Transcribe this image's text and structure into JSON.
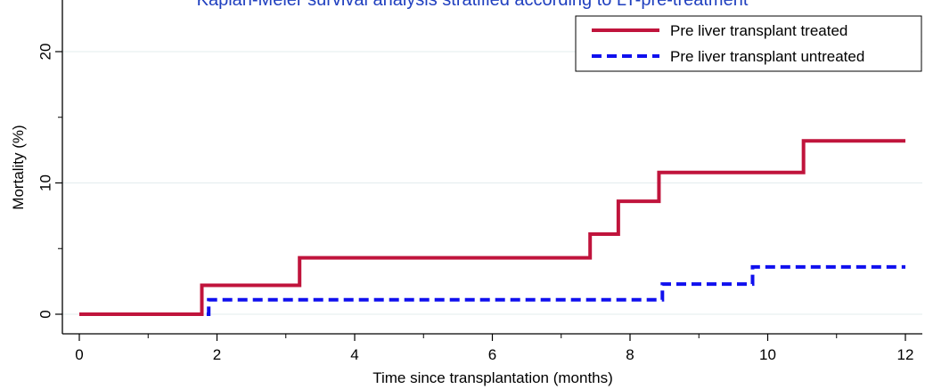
{
  "chart_data": {
    "type": "line",
    "title": "Kaplan-Meier survival analysis stratified according to LT-pre-treatment",
    "xlabel": "Time since transplantation  (months)",
    "ylabel": "Mortality (%)",
    "xlim": [
      0,
      12
    ],
    "ylim": [
      0,
      20
    ],
    "x_ticks": [
      0,
      2,
      4,
      6,
      8,
      10,
      12
    ],
    "x_minor_ticks": [
      1,
      3,
      5,
      7,
      9,
      11
    ],
    "y_ticks": [
      0,
      10,
      20
    ],
    "grid": true,
    "legend_position": "top-right",
    "step": true,
    "series": [
      {
        "name": "Pre liver transplant treated",
        "color": "#c0143c",
        "style": "solid",
        "x": [
          0,
          1.78,
          3.2,
          7.42,
          7.83,
          8.42,
          10.52,
          12
        ],
        "y": [
          0,
          2.2,
          4.3,
          6.1,
          8.6,
          10.8,
          13.2,
          13.2
        ]
      },
      {
        "name": "Pre liver transplant untreated",
        "color": "#1010ee",
        "style": "dashed",
        "x": [
          1.85,
          1.88,
          8.47,
          9.78,
          12
        ],
        "y": [
          0,
          1.1,
          2.3,
          3.6,
          3.6
        ]
      }
    ]
  }
}
